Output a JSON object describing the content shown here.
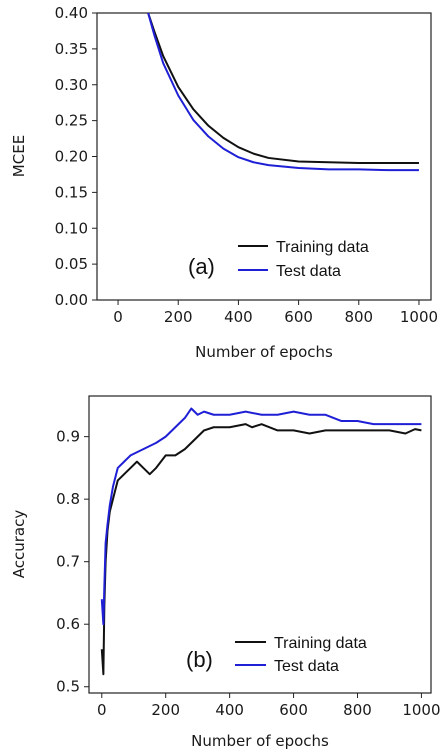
{
  "chart_data": [
    {
      "type": "line",
      "panel_label": "(a)",
      "xlabel": "Number of epochs",
      "ylabel": "MCEE",
      "xlim": [
        -70,
        1040
      ],
      "ylim": [
        0,
        0.4
      ],
      "xticks": [
        0,
        200,
        400,
        600,
        800,
        1000
      ],
      "yticks": [
        "0.00",
        "0.05",
        "0.10",
        "0.15",
        "0.20",
        "0.25",
        "0.30",
        "0.35",
        "0.40"
      ],
      "legend_position": "lower-right",
      "grid": false,
      "series": [
        {
          "name": "Training data",
          "color": "#111111",
          "x": [
            100,
            120,
            150,
            200,
            250,
            300,
            350,
            400,
            450,
            500,
            600,
            700,
            800,
            900,
            1000
          ],
          "y": [
            0.4,
            0.375,
            0.34,
            0.297,
            0.266,
            0.243,
            0.226,
            0.213,
            0.204,
            0.198,
            0.193,
            0.192,
            0.191,
            0.191,
            0.191
          ]
        },
        {
          "name": "Test data",
          "color": "#1f1fd6",
          "x": [
            100,
            120,
            150,
            200,
            250,
            300,
            350,
            400,
            450,
            500,
            600,
            700,
            800,
            900,
            1000
          ],
          "y": [
            0.4,
            0.37,
            0.33,
            0.285,
            0.251,
            0.228,
            0.211,
            0.199,
            0.192,
            0.188,
            0.184,
            0.182,
            0.182,
            0.181,
            0.181
          ]
        }
      ]
    },
    {
      "type": "line",
      "panel_label": "(b)",
      "xlabel": "Number of epochs",
      "ylabel": "Accuracy",
      "xlim": [
        -40,
        1030
      ],
      "ylim": [
        0.49,
        0.965
      ],
      "xticks": [
        0,
        200,
        400,
        600,
        800,
        1000
      ],
      "yticks": [
        "0.5",
        "0.6",
        "0.7",
        "0.8",
        "0.9"
      ],
      "legend_position": "lower-right",
      "grid": false,
      "series": [
        {
          "name": "Training data",
          "color": "#111111",
          "x": [
            0,
            5,
            8,
            12,
            18,
            25,
            35,
            50,
            70,
            90,
            110,
            130,
            150,
            170,
            200,
            230,
            260,
            280,
            300,
            320,
            350,
            400,
            450,
            470,
            500,
            550,
            600,
            650,
            700,
            750,
            800,
            850,
            900,
            950,
            980,
            1000
          ],
          "y": [
            0.56,
            0.52,
            0.63,
            0.7,
            0.75,
            0.78,
            0.8,
            0.83,
            0.84,
            0.85,
            0.86,
            0.85,
            0.84,
            0.85,
            0.87,
            0.87,
            0.88,
            0.89,
            0.9,
            0.91,
            0.915,
            0.915,
            0.92,
            0.915,
            0.92,
            0.91,
            0.91,
            0.905,
            0.91,
            0.91,
            0.91,
            0.91,
            0.91,
            0.905,
            0.912,
            0.91
          ]
        },
        {
          "name": "Test data",
          "color": "#1f1fd6",
          "x": [
            0,
            5,
            8,
            12,
            18,
            25,
            35,
            50,
            70,
            90,
            110,
            130,
            150,
            170,
            200,
            230,
            260,
            280,
            300,
            320,
            350,
            400,
            450,
            500,
            550,
            600,
            650,
            700,
            750,
            800,
            850,
            900,
            950,
            1000
          ],
          "y": [
            0.64,
            0.6,
            0.66,
            0.73,
            0.76,
            0.79,
            0.82,
            0.85,
            0.86,
            0.87,
            0.875,
            0.88,
            0.885,
            0.89,
            0.9,
            0.915,
            0.93,
            0.945,
            0.935,
            0.94,
            0.935,
            0.935,
            0.94,
            0.935,
            0.935,
            0.94,
            0.935,
            0.935,
            0.925,
            0.925,
            0.92,
            0.92,
            0.92,
            0.92
          ]
        }
      ]
    }
  ]
}
